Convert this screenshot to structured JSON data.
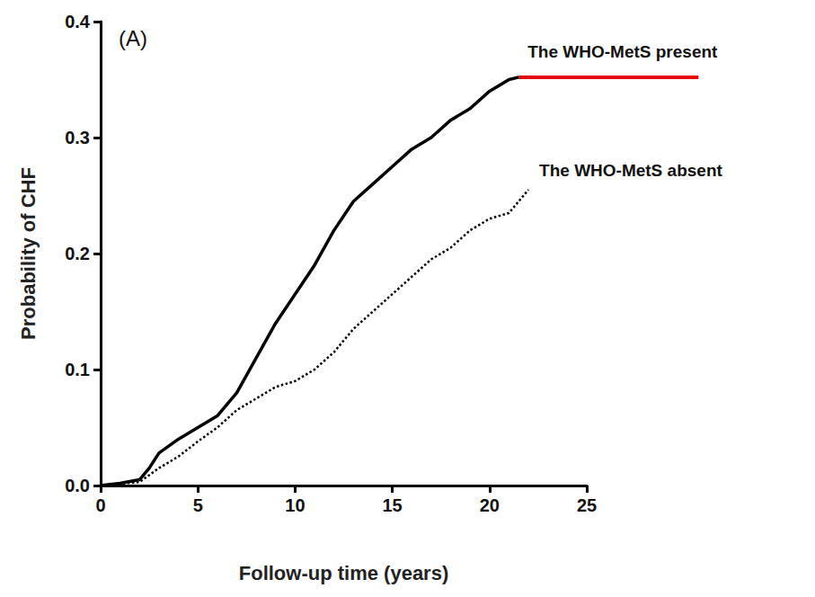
{
  "chart_data": {
    "type": "line",
    "annotations": [
      "(A)"
    ],
    "x_label": "Follow-up time (years)",
    "y_label": "Probability of CHF",
    "xlim": [
      0,
      25
    ],
    "xticks": [
      0,
      5,
      10,
      15,
      20,
      25
    ],
    "ylim": [
      0,
      0.4
    ],
    "yticks": [
      {
        "value": 0,
        "label": "0.0"
      },
      {
        "value": 0.1,
        "label": "0.1"
      },
      {
        "value": 0.2,
        "label": "0.2"
      },
      {
        "value": 0.3,
        "label": "0.3"
      },
      {
        "value": 0.4,
        "label": "0.4"
      }
    ],
    "grid": false,
    "series": [
      {
        "name": "The WHO-MetS present",
        "color": "#000000",
        "line_style": "solid",
        "x": [
          0,
          1,
          2,
          2.5,
          3,
          4,
          5,
          6,
          7,
          8,
          9,
          10,
          11,
          12,
          13,
          14,
          15,
          16,
          17,
          18,
          19,
          20,
          21,
          21.5
        ],
        "values": [
          0,
          0.002,
          0.005,
          0.015,
          0.028,
          0.04,
          0.05,
          0.06,
          0.08,
          0.11,
          0.14,
          0.165,
          0.19,
          0.22,
          0.245,
          0.26,
          0.275,
          0.29,
          0.3,
          0.315,
          0.325,
          0.34,
          0.35,
          0.352
        ]
      },
      {
        "name": "The WHO-MetS absent",
        "color": "#000000",
        "line_style": "dotted",
        "x": [
          0,
          2,
          3,
          4,
          5,
          6,
          7,
          8,
          9,
          10,
          11,
          12,
          13,
          14,
          15,
          16,
          17,
          18,
          19,
          20,
          21,
          22
        ],
        "values": [
          0,
          0.003,
          0.015,
          0.025,
          0.038,
          0.05,
          0.065,
          0.075,
          0.085,
          0.09,
          0.1,
          0.115,
          0.135,
          0.15,
          0.165,
          0.18,
          0.195,
          0.205,
          0.22,
          0.23,
          0.235,
          0.255
        ]
      }
    ]
  }
}
